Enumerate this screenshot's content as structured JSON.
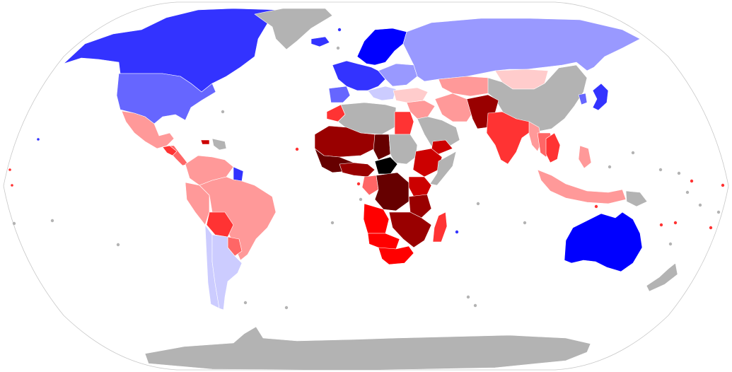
{
  "map": {
    "projection": "Robinson",
    "ocean_color": "#ffffff",
    "outline_color": "#c8c8c8",
    "no_data_color": "#b3b3b3",
    "palette": {
      "blue_darkest": "#0000ff",
      "blue_dark": "#3333ff",
      "blue_mid": "#6666ff",
      "blue_light": "#9999ff",
      "blue_pale": "#ccccff",
      "red_pale": "#ffcccc",
      "red_light": "#ff9999",
      "red_mid": "#ff6666",
      "red": "#ff3333",
      "red_strong": "#ff0000",
      "red_deep": "#cc0000",
      "red_darker": "#990000",
      "red_darkest": "#660000",
      "maroon": "#400000",
      "black": "#000000"
    },
    "regions": [
      {
        "name": "canada",
        "color": "blue_dark"
      },
      {
        "name": "greenland",
        "color": "no_data"
      },
      {
        "name": "usa",
        "color": "blue_mid"
      },
      {
        "name": "mexico",
        "color": "red_light"
      },
      {
        "name": "central-america",
        "color": "red_mid"
      },
      {
        "name": "guatemala-honduras",
        "color": "red"
      },
      {
        "name": "caribbean",
        "color": "no_data"
      },
      {
        "name": "haiti",
        "color": "red_deep"
      },
      {
        "name": "colombia-venezuela",
        "color": "red_light"
      },
      {
        "name": "guyana-suriname",
        "color": "blue_dark"
      },
      {
        "name": "peru",
        "color": "red_light"
      },
      {
        "name": "brazil",
        "color": "red_light"
      },
      {
        "name": "bolivia",
        "color": "red"
      },
      {
        "name": "paraguay",
        "color": "red_mid"
      },
      {
        "name": "chile",
        "color": "blue_pale"
      },
      {
        "name": "argentina-uruguay",
        "color": "blue_pale"
      },
      {
        "name": "iceland",
        "color": "blue_dark"
      },
      {
        "name": "scandinavia",
        "color": "blue_darkest"
      },
      {
        "name": "western-europe",
        "color": "blue_dark"
      },
      {
        "name": "iberia",
        "color": "blue_mid"
      },
      {
        "name": "eastern-europe",
        "color": "blue_light"
      },
      {
        "name": "balkans",
        "color": "blue_pale"
      },
      {
        "name": "turkey",
        "color": "red_pale"
      },
      {
        "name": "russia",
        "color": "blue_light"
      },
      {
        "name": "kazakhstan",
        "color": "red_pale"
      },
      {
        "name": "central-asia",
        "color": "red_light"
      },
      {
        "name": "mongolia-china",
        "color": "no_data"
      },
      {
        "name": "japan",
        "color": "blue_dark"
      },
      {
        "name": "korea",
        "color": "blue_mid"
      },
      {
        "name": "middle-east",
        "color": "red_light"
      },
      {
        "name": "arabia",
        "color": "no_data"
      },
      {
        "name": "yemen",
        "color": "red_deep"
      },
      {
        "name": "iran",
        "color": "red_light"
      },
      {
        "name": "afghanistan-pakistan",
        "color": "red_darker"
      },
      {
        "name": "india",
        "color": "red"
      },
      {
        "name": "myanmar",
        "color": "red_light"
      },
      {
        "name": "thailand-laos",
        "color": "red_mid"
      },
      {
        "name": "vietnam-cambodia",
        "color": "red"
      },
      {
        "name": "malaysia-indonesia",
        "color": "red_light"
      },
      {
        "name": "philippines",
        "color": "red_light"
      },
      {
        "name": "png",
        "color": "no_data"
      },
      {
        "name": "australia",
        "color": "blue_darkest"
      },
      {
        "name": "new-zealand",
        "color": "no_data"
      },
      {
        "name": "morocco",
        "color": "red"
      },
      {
        "name": "algeria-libya",
        "color": "no_data"
      },
      {
        "name": "egypt",
        "color": "red"
      },
      {
        "name": "west-africa",
        "color": "red_darkest"
      },
      {
        "name": "sahel",
        "color": "red_darker"
      },
      {
        "name": "chad",
        "color": "red_darkest"
      },
      {
        "name": "sudan",
        "color": "no_data"
      },
      {
        "name": "car",
        "color": "black"
      },
      {
        "name": "ethiopia",
        "color": "red_deep"
      },
      {
        "name": "somalia",
        "color": "no_data"
      },
      {
        "name": "gulf-of-guinea",
        "color": "red_darker"
      },
      {
        "name": "gabon-congo",
        "color": "red_mid"
      },
      {
        "name": "drc",
        "color": "red_darkest"
      },
      {
        "name": "east-africa",
        "color": "red_deep"
      },
      {
        "name": "tanzania",
        "color": "red_darker"
      },
      {
        "name": "angola",
        "color": "red_strong"
      },
      {
        "name": "zambia-mozambique",
        "color": "red_darker"
      },
      {
        "name": "namibia-botswana",
        "color": "red_strong"
      },
      {
        "name": "south-africa",
        "color": "red_strong"
      },
      {
        "name": "madagascar",
        "color": "red"
      },
      {
        "name": "antarctica",
        "color": "no_data"
      }
    ],
    "islands": [
      {
        "name": "pacific-island",
        "color": "no_data"
      },
      {
        "name": "atlantic-island",
        "color": "no_data"
      },
      {
        "name": "island-red",
        "color": "red"
      },
      {
        "name": "island-blue",
        "color": "blue_dark"
      }
    ]
  }
}
